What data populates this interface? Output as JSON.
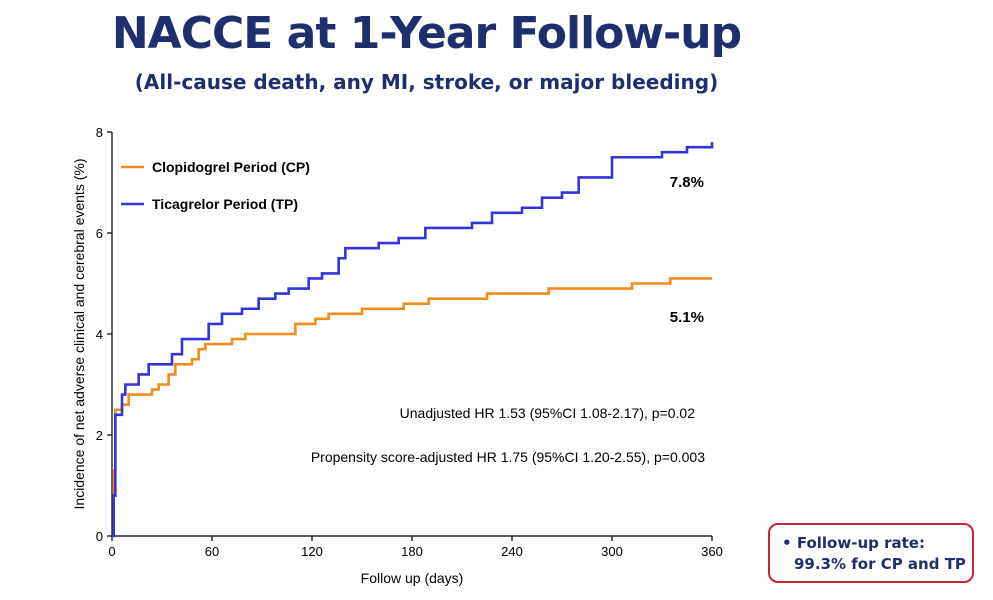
{
  "title": "NACCE at 1-Year Follow-up",
  "subtitle": "(All-cause death, any MI, stroke, or major bleeding)",
  "note": {
    "bullet": "•",
    "line1": "Follow-up rate:",
    "line2": "99.3% for CP and TP"
  },
  "colors": {
    "cp": "#f28c1c",
    "tp": "#3434d8",
    "axis": "#000000",
    "note_border": "#c0282d",
    "title": "#1f2f6e"
  },
  "chart_data": {
    "type": "line",
    "xlabel": "Follow up (days)",
    "ylabel": "Incidence of net adverse clinical and cerebral events (%)",
    "xlim": [
      0,
      360
    ],
    "ylim": [
      0,
      8
    ],
    "xticks": [
      0,
      60,
      120,
      180,
      240,
      300,
      360
    ],
    "yticks": [
      0,
      2,
      4,
      6,
      8
    ],
    "grid": false,
    "legend_position": "top-left",
    "series": [
      {
        "name": "Clopidogrel Period (CP)",
        "color": "#f28c1c",
        "end_label": "5.1%",
        "points": [
          [
            0,
            0
          ],
          [
            1,
            1.3
          ],
          [
            2,
            2.5
          ],
          [
            6,
            2.6
          ],
          [
            10,
            2.8
          ],
          [
            24,
            2.9
          ],
          [
            28,
            3.0
          ],
          [
            34,
            3.2
          ],
          [
            38,
            3.4
          ],
          [
            48,
            3.5
          ],
          [
            52,
            3.7
          ],
          [
            56,
            3.8
          ],
          [
            72,
            3.9
          ],
          [
            80,
            4.0
          ],
          [
            110,
            4.2
          ],
          [
            122,
            4.3
          ],
          [
            130,
            4.4
          ],
          [
            150,
            4.5
          ],
          [
            175,
            4.6
          ],
          [
            190,
            4.7
          ],
          [
            225,
            4.8
          ],
          [
            262,
            4.9
          ],
          [
            312,
            5.0
          ],
          [
            335,
            5.1
          ],
          [
            360,
            5.1
          ]
        ]
      },
      {
        "name": "Ticagrelor Period (TP)",
        "color": "#3434d8",
        "end_label": "7.8%",
        "points": [
          [
            0,
            0
          ],
          [
            1,
            0.8
          ],
          [
            2,
            2.4
          ],
          [
            6,
            2.8
          ],
          [
            8,
            3.0
          ],
          [
            16,
            3.2
          ],
          [
            22,
            3.4
          ],
          [
            36,
            3.6
          ],
          [
            42,
            3.9
          ],
          [
            58,
            4.2
          ],
          [
            66,
            4.4
          ],
          [
            78,
            4.5
          ],
          [
            88,
            4.7
          ],
          [
            98,
            4.8
          ],
          [
            106,
            4.9
          ],
          [
            118,
            5.1
          ],
          [
            126,
            5.2
          ],
          [
            136,
            5.5
          ],
          [
            140,
            5.7
          ],
          [
            160,
            5.8
          ],
          [
            172,
            5.9
          ],
          [
            188,
            6.1
          ],
          [
            216,
            6.2
          ],
          [
            228,
            6.4
          ],
          [
            246,
            6.5
          ],
          [
            258,
            6.7
          ],
          [
            270,
            6.8
          ],
          [
            280,
            7.1
          ],
          [
            300,
            7.5
          ],
          [
            330,
            7.6
          ],
          [
            345,
            7.7
          ],
          [
            360,
            7.8
          ]
        ]
      }
    ],
    "annotations": [
      "Unadjusted HR 1.53 (95%CI 1.08-2.17), p=0.02",
      "Propensity score-adjusted HR 1.75 (95%CI 1.20-2.55), p=0.003"
    ]
  }
}
